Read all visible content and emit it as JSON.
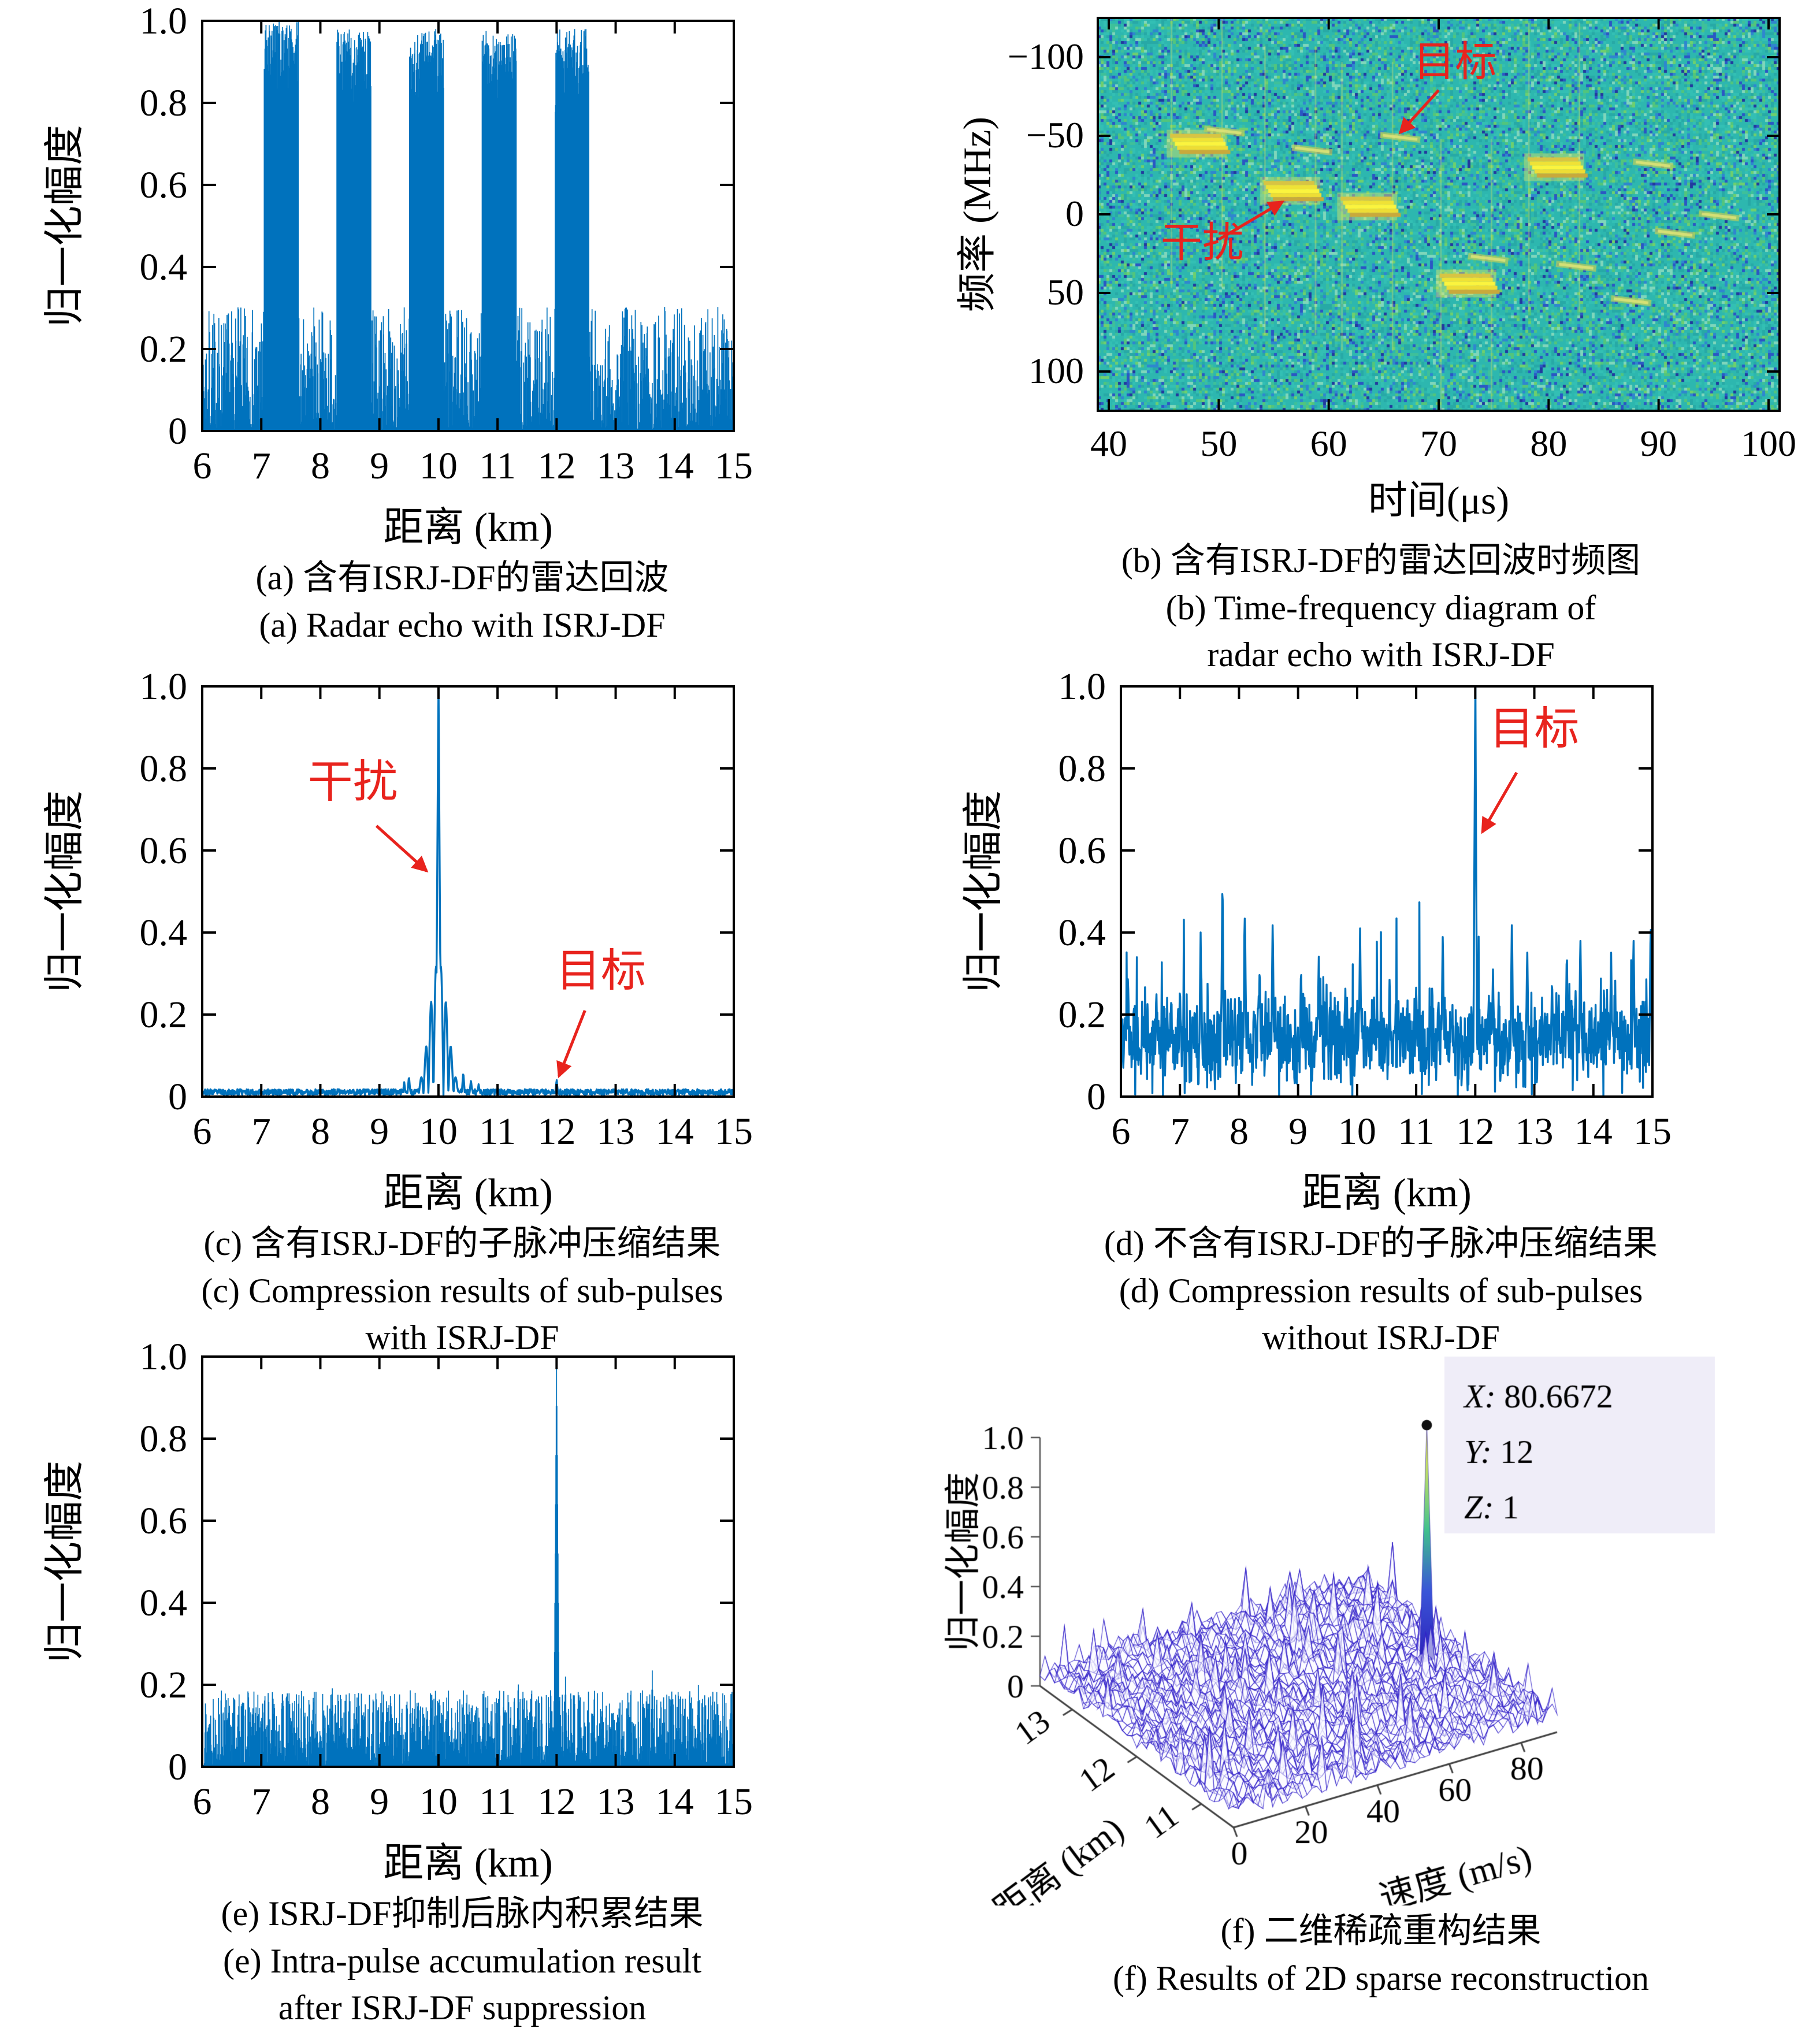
{
  "chart_data": [
    {
      "id": "a",
      "type": "line",
      "style": "fill",
      "seed": 7,
      "xlabel": "距离 (km)",
      "ylabel": "归一化幅度",
      "xlim": [
        6,
        15
      ],
      "ylim": [
        0,
        1
      ],
      "xticks": [
        6,
        7,
        8,
        9,
        10,
        11,
        12,
        13,
        14,
        15
      ],
      "yticks": [
        0,
        0.2,
        0.4,
        0.6,
        0.8,
        1
      ],
      "ytick_labels": [
        "0",
        "0.2",
        "0.4",
        "0.6",
        "0.8",
        "1.0"
      ],
      "colors": {
        "line": "#0072BD",
        "annotation": "#E8231D"
      },
      "noise": {
        "base": 0.004,
        "amp": 0.3,
        "pow": 1.8
      },
      "pulses": [
        {
          "from": 7.05,
          "to": 7.63,
          "base": 0.72,
          "amp": 0.28,
          "pow": 0.5
        },
        {
          "from": 8.28,
          "to": 8.86,
          "base": 0.72,
          "amp": 0.26,
          "pow": 0.5
        },
        {
          "from": 9.51,
          "to": 10.09,
          "base": 0.72,
          "amp": 0.26,
          "pow": 0.5
        },
        {
          "from": 10.74,
          "to": 11.32,
          "base": 0.72,
          "amp": 0.26,
          "pow": 0.5
        },
        {
          "from": 11.97,
          "to": 12.55,
          "base": 0.72,
          "amp": 0.26,
          "pow": 0.5
        }
      ],
      "caption": [
        "(a) 含有ISRJ-DF的雷达回波",
        "(a) Radar echo with ISRJ-DF"
      ]
    },
    {
      "id": "b",
      "type": "heatmap",
      "seed": 11,
      "xlabel": "时间(μs)",
      "ylabel": "频率 (MHz)",
      "xlim": [
        39,
        101
      ],
      "ylim": [
        -125,
        125
      ],
      "xticks": [
        40,
        50,
        60,
        70,
        80,
        90,
        100
      ],
      "yticks": [
        -100,
        -50,
        0,
        50,
        100
      ],
      "ytick_labels": [
        "−100",
        "−50",
        "0",
        "50",
        "100"
      ],
      "bg": "#2CB5AD",
      "palette": [
        [
          "#2db7af",
          0.4
        ],
        [
          "#33bfb4",
          0.12
        ],
        [
          "#27a9a6",
          0.12
        ],
        [
          "#3ec09a",
          0.07
        ],
        [
          "#52c57c",
          0.06
        ],
        [
          "#6ecf6e",
          0.04
        ],
        [
          "#2f86cf",
          0.06
        ],
        [
          "#2b57c4",
          0.05
        ],
        [
          "#223a9e",
          0.02
        ],
        [
          "#7fd6bb",
          0.06
        ]
      ],
      "colors": {
        "annotation": "#E8231D"
      },
      "jamming_patches": [
        {
          "t": 48,
          "f": -45
        },
        {
          "t": 56.5,
          "f": -15
        },
        {
          "t": 63.5,
          "f": -5
        },
        {
          "t": 72.5,
          "f": 44
        },
        {
          "t": 80.5,
          "f": -30
        }
      ],
      "target_streaks": [
        {
          "t": 50.5,
          "f": -53
        },
        {
          "t": 58.5,
          "f": -41
        },
        {
          "t": 66.5,
          "f": -49
        },
        {
          "t": 74.5,
          "f": 28
        },
        {
          "t": 82.5,
          "f": 33
        },
        {
          "t": 89.5,
          "f": -32
        },
        {
          "t": 95.5,
          "f": 1
        },
        {
          "t": 87.5,
          "f": 55
        },
        {
          "t": 91.5,
          "f": 12
        }
      ],
      "annotations": [
        {
          "text": "目标",
          "tx": 71.5,
          "ty": -88,
          "ax": 70,
          "ay": -79,
          "bx": 66.5,
          "by": -52
        },
        {
          "text": "干扰",
          "tx": 48.5,
          "ty": 27,
          "ax": 50,
          "ay": 16,
          "bx": 55.8,
          "by": -8
        }
      ],
      "caption": [
        "(b) 含有ISRJ-DF的雷达回波时频图",
        "(b) Time-frequency diagram of",
        "radar echo with ISRJ-DF"
      ]
    },
    {
      "id": "c",
      "type": "line",
      "style": "line",
      "seed": 23,
      "xlabel": "距离 (km)",
      "ylabel": "归一化幅度",
      "xlim": [
        6,
        15
      ],
      "ylim": [
        0,
        1
      ],
      "xticks": [
        6,
        7,
        8,
        9,
        10,
        11,
        12,
        13,
        14,
        15
      ],
      "yticks": [
        0,
        0.2,
        0.4,
        0.6,
        0.8,
        1
      ],
      "ytick_labels": [
        "0",
        "0.2",
        "0.4",
        "0.6",
        "0.8",
        "1.0"
      ],
      "colors": {
        "line": "#0072BD",
        "annotation": "#E8231D"
      },
      "noise": {
        "base": 0.004,
        "amp": 0.014,
        "pow": 1
      },
      "sidelobe": {
        "center": 10,
        "sigma": 0.21,
        "amp": 0.33,
        "period": 0.085
      },
      "spikes": [
        [
          9.5,
          0.05
        ],
        [
          9.42,
          0.035
        ],
        [
          10.42,
          0.06
        ],
        [
          10.55,
          0.04
        ],
        [
          10.68,
          0.03
        ]
      ],
      "peaks": [
        {
          "x": 10,
          "h": 1,
          "w": 0.045
        },
        {
          "x": 12,
          "h": 0.04,
          "w": 0.03
        }
      ],
      "annotations": [
        {
          "text": "干扰",
          "tx": 8.55,
          "ty": 0.73,
          "ax": 8.95,
          "ay": 0.66,
          "bx": 9.8,
          "by": 0.55
        },
        {
          "text": "目标",
          "tx": 12.75,
          "ty": 0.27,
          "ax": 12.48,
          "ay": 0.21,
          "bx": 12.04,
          "by": 0.05
        }
      ],
      "caption": [
        "(c) 含有ISRJ-DF的子脉冲压缩结果",
        "(c) Compression results of sub-pulses",
        "with ISRJ-DF"
      ]
    },
    {
      "id": "d",
      "type": "line",
      "style": "line",
      "seed": 5,
      "xlabel": "距离 (km)",
      "ylabel": "归一化幅度",
      "xlim": [
        6,
        15
      ],
      "ylim": [
        0,
        1
      ],
      "xticks": [
        6,
        7,
        8,
        9,
        10,
        11,
        12,
        13,
        14,
        15
      ],
      "yticks": [
        0,
        0.2,
        0.4,
        0.6,
        0.8,
        1
      ],
      "ytick_labels": [
        "0",
        "0.2",
        "0.4",
        "0.6",
        "0.8",
        "1.0"
      ],
      "colors": {
        "line": "#0072BD",
        "annotation": "#E8231D"
      },
      "noise": {
        "type": "gauss",
        "mean": 0.14,
        "sd": 0.055,
        "spike_p": 0.02
      },
      "spikes": [
        [
          6.12,
          0.31
        ],
        [
          6.6,
          0.27
        ],
        [
          7.0,
          0.28
        ],
        [
          7.35,
          0.4
        ],
        [
          7.72,
          0.55
        ],
        [
          8.1,
          0.47
        ],
        [
          8.35,
          0.33
        ],
        [
          8.57,
          0.44
        ],
        [
          9.05,
          0.33
        ],
        [
          9.35,
          0.35
        ],
        [
          9.8,
          0.27
        ],
        [
          10.05,
          0.41
        ],
        [
          10.55,
          0.3
        ],
        [
          11.0,
          0.28
        ],
        [
          11.45,
          0.41
        ],
        [
          12.3,
          0.31
        ],
        [
          12.62,
          0.44
        ],
        [
          12.88,
          0.37
        ],
        [
          13.3,
          0.3
        ],
        [
          13.55,
          0.37
        ],
        [
          13.78,
          0.4
        ],
        [
          14.3,
          0.36
        ],
        [
          14.68,
          0.4
        ],
        [
          14.97,
          0.44
        ]
      ],
      "peaks": [
        {
          "x": 12,
          "h": 1,
          "w": 0.035
        }
      ],
      "annotations": [
        {
          "text": "目标",
          "tx": 13.0,
          "ty": 0.86,
          "ax": 12.7,
          "ay": 0.79,
          "bx": 12.12,
          "by": 0.645
        }
      ],
      "caption": [
        "(d) 不含有ISRJ-DF的子脉冲压缩结果",
        "(d) Compression results of sub-pulses",
        "without ISRJ-DF"
      ]
    },
    {
      "id": "e",
      "type": "line",
      "style": "fill",
      "seed": 13,
      "xlabel": "距离 (km)",
      "ylabel": "归一化幅度",
      "xlim": [
        6,
        15
      ],
      "ylim": [
        0,
        1
      ],
      "xticks": [
        6,
        7,
        8,
        9,
        10,
        11,
        12,
        13,
        14,
        15
      ],
      "yticks": [
        0,
        0.2,
        0.4,
        0.6,
        0.8,
        1
      ],
      "ytick_labels": [
        "0",
        "0.2",
        "0.4",
        "0.6",
        "0.8",
        "1.0"
      ],
      "colors": {
        "line": "#0072BD",
        "annotation": "#E8231D"
      },
      "noise": {
        "base": 0.002,
        "amp": 0.185,
        "pow": 1.4
      },
      "spikes": [
        [
          8.2,
          0.205
        ],
        [
          11.35,
          0.215
        ],
        [
          11.9,
          0.2
        ],
        [
          12.15,
          0.22
        ],
        [
          13.62,
          0.235
        ],
        [
          14.4,
          0.2
        ]
      ],
      "peaks": [
        {
          "x": 12,
          "h": 1,
          "w": 0.05
        }
      ],
      "caption": [
        "(e) ISRJ-DF抑制后脉内积累结果",
        "(e) Intra-pulse accumulation result",
        "after ISRJ-DF suppression"
      ]
    },
    {
      "id": "f",
      "type": "surface3d",
      "seed": 3,
      "xlabel": "速度 (m/s)",
      "dlabel": "距离 (km)",
      "zlabel": "归一化幅度",
      "vlim": [
        0,
        90
      ],
      "vticks": [
        0,
        20,
        40,
        60,
        80
      ],
      "dlim": [
        10.5,
        13.5
      ],
      "dticks": [
        13,
        12,
        11
      ],
      "zticks": [
        0,
        0.2,
        0.4,
        0.6,
        0.8,
        1
      ],
      "ztick_labels": [
        "0",
        "0.2",
        "0.4",
        "0.6",
        "0.8",
        "1.0"
      ],
      "mesh_color": "rgba(48,30,200,0.8)",
      "peak": {
        "v": 80.6672,
        "d": 12,
        "z": 1
      },
      "datatip": {
        "bg": "#EFEDF8",
        "lines": [
          [
            "X",
            "80.6672"
          ],
          [
            "Y",
            "12"
          ],
          [
            "Z",
            "1"
          ]
        ]
      },
      "caption": [
        "(f) 二维稀疏重构结果",
        "(f) Results of 2D sparse reconstruction"
      ]
    }
  ]
}
